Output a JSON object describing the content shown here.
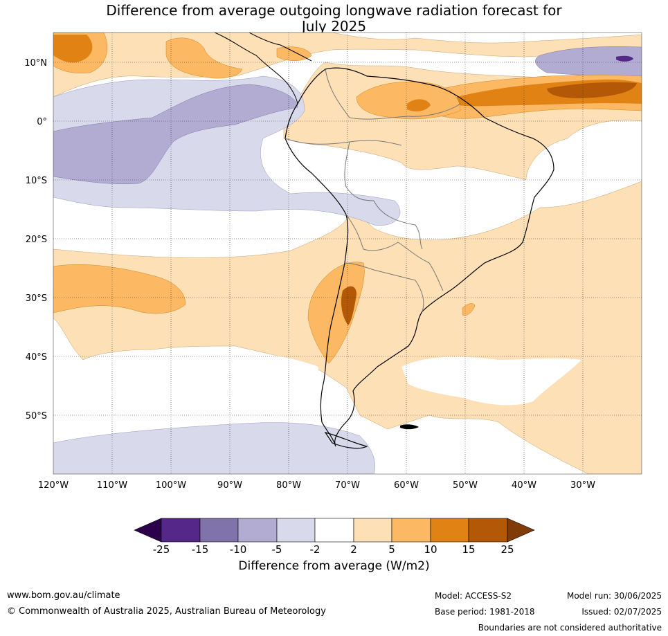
{
  "title_line1": "Difference from average outgoing longwave radiation forecast for",
  "title_line2": "July 2025",
  "lat_labels": [
    "10°N",
    "0°",
    "10°S",
    "20°S",
    "30°S",
    "40°S",
    "50°S"
  ],
  "lon_labels": [
    "120°W",
    "110°W",
    "100°W",
    "90°W",
    "80°W",
    "70°W",
    "60°W",
    "50°W",
    "40°W",
    "30°W"
  ],
  "colorbar": {
    "ticks": [
      "-25",
      "-15",
      "-10",
      "-5",
      "-2",
      "2",
      "5",
      "10",
      "15",
      "25"
    ],
    "colors": [
      "#2d004b",
      "#542788",
      "#8073ac",
      "#b2abd2",
      "#d8daeb",
      "#ffffff",
      "#fee0b6",
      "#fdb863",
      "#e08214",
      "#b35806",
      "#7f3b08"
    ],
    "title": "Difference from average (W/m2)"
  },
  "footer": {
    "url": "www.bom.gov.au/climate",
    "copyright": "© Commonwealth of Australia 2025, Australian Bureau of Meteorology",
    "model": "Model: ACCESS-S2",
    "base_period": "Base period: 1981-2018",
    "model_run": "Model run: 30/06/2025",
    "issued": "Issued: 02/07/2025",
    "disclaimer": "Boundaries are not considered authoritative"
  }
}
